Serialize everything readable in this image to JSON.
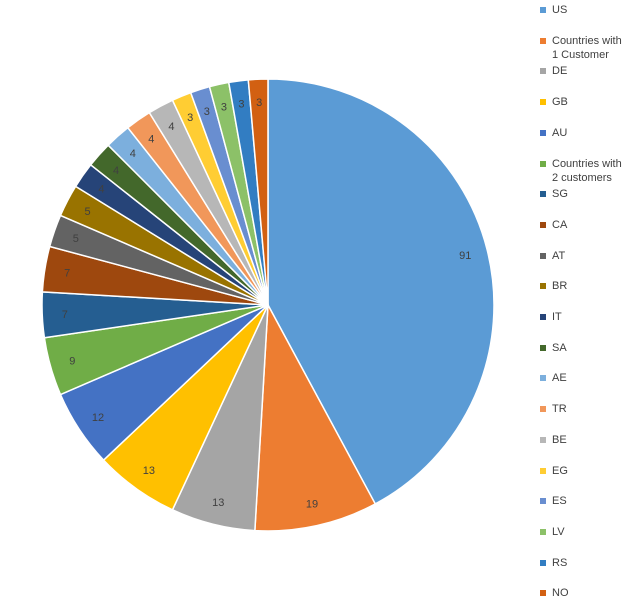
{
  "chart_data": {
    "type": "pie",
    "title": "",
    "legend_position": "right",
    "slices": [
      {
        "label": "US",
        "value": 91,
        "color": "#5B9BD5"
      },
      {
        "label": "Countries with\n1 Customer",
        "value": 19,
        "color": "#ED7D31"
      },
      {
        "label": "DE",
        "value": 13,
        "color": "#A5A5A5"
      },
      {
        "label": "GB",
        "value": 13,
        "color": "#FFC000"
      },
      {
        "label": "AU",
        "value": 12,
        "color": "#4472C4"
      },
      {
        "label": "Countries with\n2 customers",
        "value": 9,
        "color": "#70AD47"
      },
      {
        "label": "SG",
        "value": 7,
        "color": "#255E91"
      },
      {
        "label": "CA",
        "value": 7,
        "color": "#9E480E"
      },
      {
        "label": "AT",
        "value": 5,
        "color": "#636363"
      },
      {
        "label": "BR",
        "value": 5,
        "color": "#997300"
      },
      {
        "label": "IT",
        "value": 4,
        "color": "#264478"
      },
      {
        "label": "SA",
        "value": 4,
        "color": "#43682B"
      },
      {
        "label": "AE",
        "value": 4,
        "color": "#7CAFDD"
      },
      {
        "label": "TR",
        "value": 4,
        "color": "#F1975A"
      },
      {
        "label": "BE",
        "value": 4,
        "color": "#B7B7B7"
      },
      {
        "label": "EG",
        "value": 3,
        "color": "#FFCD33"
      },
      {
        "label": "ES",
        "value": 3,
        "color": "#698ED0"
      },
      {
        "label": "LV",
        "value": 3,
        "color": "#8CC168"
      },
      {
        "label": "RS",
        "value": 3,
        "color": "#327DC2"
      },
      {
        "label": "NO",
        "value": 3,
        "color": "#D26012"
      }
    ]
  }
}
